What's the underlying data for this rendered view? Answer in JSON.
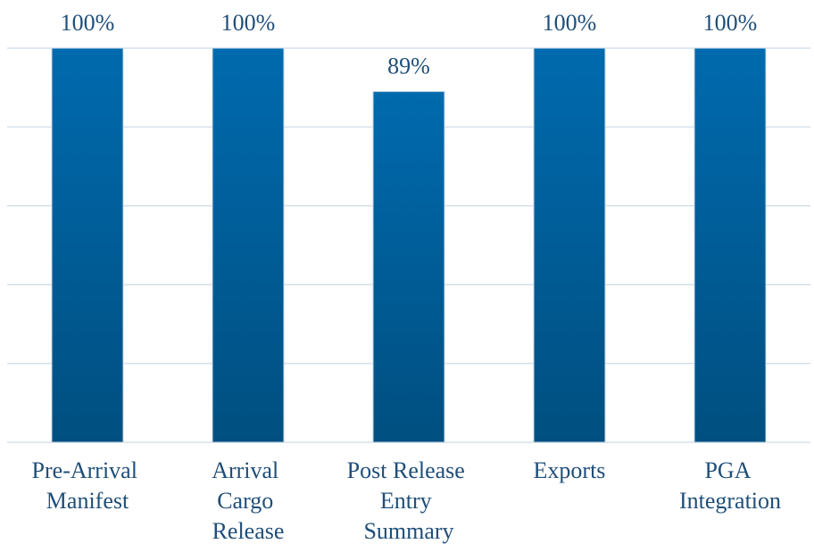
{
  "chart_data": {
    "type": "bar",
    "categories": [
      "Pre-Arrival Manifest",
      "Arrival Cargo Release",
      "Post Release Entry Summary",
      "Exports",
      "PGA Integration"
    ],
    "values": [
      100,
      100,
      89,
      100,
      100
    ],
    "value_labels": [
      "100%",
      "100%",
      "89%",
      "100%",
      "100%"
    ],
    "color": "#005f9a",
    "ylim": [
      0,
      100
    ],
    "yticks": [
      0,
      20,
      40,
      60,
      80,
      100
    ],
    "grid": true
  }
}
